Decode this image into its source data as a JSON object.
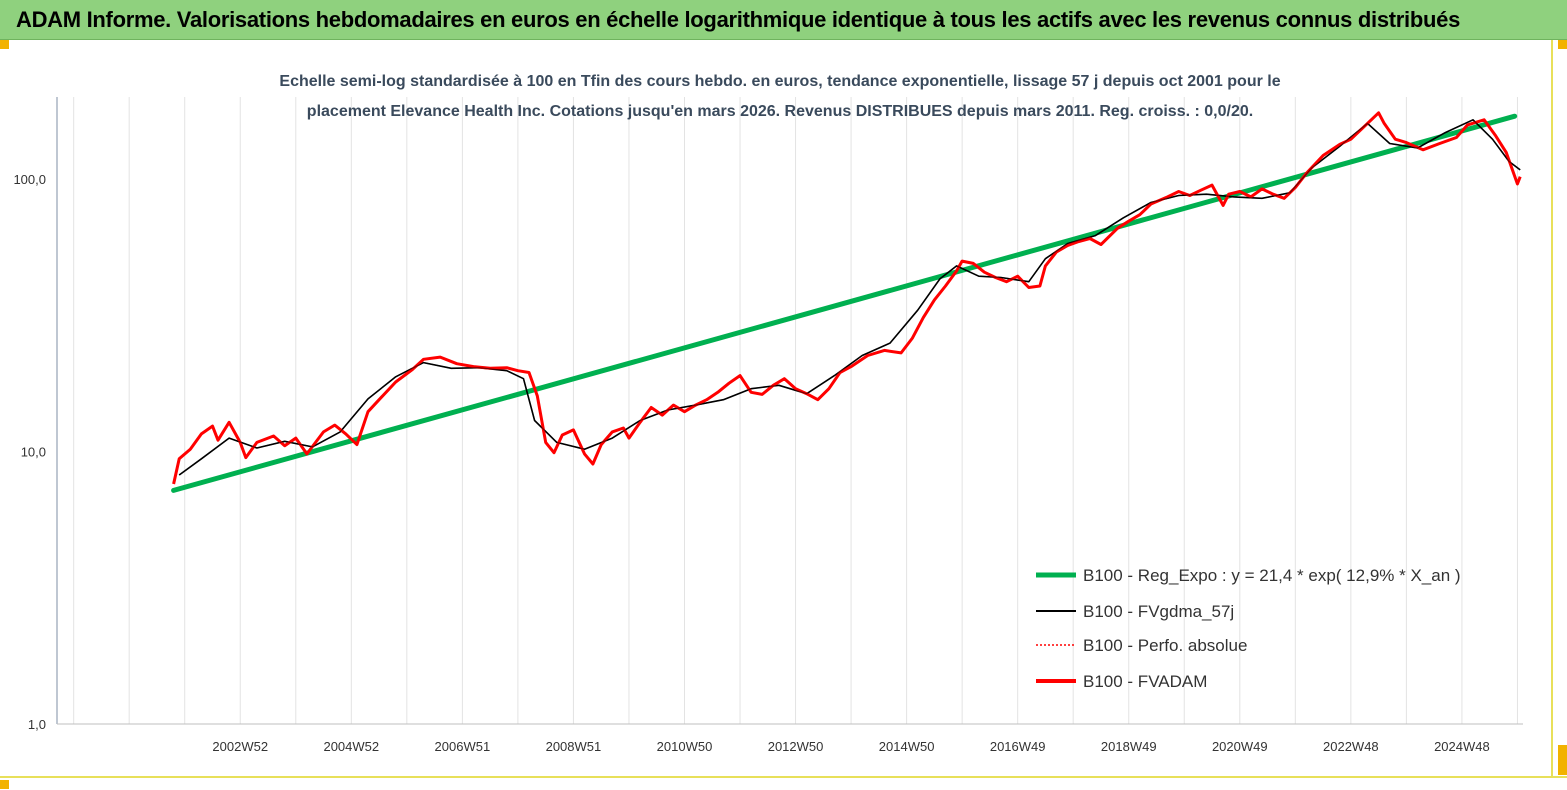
{
  "header": {
    "title": "ADAM Informe. Valorisations hebdomadaires en euros en échelle logarithmique identique à tous les actifs avec les revenus connus distribués"
  },
  "chart_data": {
    "type": "line",
    "subtitle_lines": [
      "Echelle semi-log standardisée à 100 en Tfin des cours hebdo. en euros, tendance exponentielle, lissage 57 j depuis oct 2001 pour le",
      "placement Elevance Health Inc. Cotations jusqu'en mars 2026. Revenus DISTRIBUES depuis mars 2011. Reg. croiss. : 0,0/20."
    ],
    "y_scale": "log",
    "ylim": [
      1,
      200
    ],
    "y_ticks": [
      {
        "value": 1,
        "label": "1,0"
      },
      {
        "value": 10,
        "label": "10,0"
      },
      {
        "value": 100,
        "label": "100,0"
      }
    ],
    "xlim": [
      1999.7,
      2026.1
    ],
    "x_ticks": [
      {
        "x": 2003.0,
        "label": "2002W52"
      },
      {
        "x": 2005.0,
        "label": "2004W52"
      },
      {
        "x": 2007.0,
        "label": "2006W51"
      },
      {
        "x": 2009.0,
        "label": "2008W51"
      },
      {
        "x": 2011.0,
        "label": "2010W50"
      },
      {
        "x": 2013.0,
        "label": "2012W50"
      },
      {
        "x": 2015.0,
        "label": "2014W50"
      },
      {
        "x": 2017.0,
        "label": "2016W49"
      },
      {
        "x": 2019.0,
        "label": "2018W49"
      },
      {
        "x": 2021.0,
        "label": "2020W49"
      },
      {
        "x": 2023.0,
        "label": "2022W48"
      },
      {
        "x": 2025.0,
        "label": "2024W48"
      }
    ],
    "gridlines": [
      2000.0,
      2001.0,
      2002.0,
      2003.0,
      2004.0,
      2005.0,
      2006.0,
      2007.0,
      2008.0,
      2009.0,
      2010.0,
      2011.0,
      2012.0,
      2013.0,
      2014.0,
      2015.0,
      2016.0,
      2017.0,
      2018.0,
      2019.0,
      2020.0,
      2021.0,
      2022.0,
      2023.0,
      2024.0,
      2025.0,
      2026.0
    ],
    "grid": true,
    "legend_position": "bottom-right",
    "series": [
      {
        "name": "B100 - Reg_Expo : y = 21,4 * exp( 12,9% *  X_an )",
        "color": "#00b050",
        "style": "solid-thick",
        "points": [
          [
            2001.8,
            7.2
          ],
          [
            2025.95,
            170
          ]
        ]
      },
      {
        "name": "B100 - FVgdma_57j",
        "color": "#000000",
        "style": "solid-thin",
        "points": [
          [
            2001.9,
            8.2
          ],
          [
            2002.3,
            9.4
          ],
          [
            2002.8,
            11.2
          ],
          [
            2003.3,
            10.3
          ],
          [
            2003.8,
            10.9
          ],
          [
            2004.3,
            10.4
          ],
          [
            2004.8,
            11.8
          ],
          [
            2005.3,
            15.6
          ],
          [
            2005.8,
            18.8
          ],
          [
            2006.3,
            21.2
          ],
          [
            2006.8,
            20.2
          ],
          [
            2007.3,
            20.3
          ],
          [
            2007.8,
            19.8
          ],
          [
            2008.1,
            18.5
          ],
          [
            2008.3,
            13.0
          ],
          [
            2008.7,
            10.8
          ],
          [
            2009.2,
            10.2
          ],
          [
            2009.7,
            11.2
          ],
          [
            2010.2,
            13.0
          ],
          [
            2010.7,
            14.2
          ],
          [
            2011.2,
            14.8
          ],
          [
            2011.7,
            15.5
          ],
          [
            2012.2,
            17.0
          ],
          [
            2012.7,
            17.5
          ],
          [
            2013.2,
            16.3
          ],
          [
            2013.7,
            19.0
          ],
          [
            2014.2,
            22.5
          ],
          [
            2014.7,
            25.0
          ],
          [
            2015.2,
            33.0
          ],
          [
            2015.6,
            43.0
          ],
          [
            2015.9,
            48.0
          ],
          [
            2016.3,
            44.0
          ],
          [
            2016.7,
            43.5
          ],
          [
            2017.2,
            42.0
          ],
          [
            2017.5,
            51.0
          ],
          [
            2017.9,
            58.0
          ],
          [
            2018.4,
            62.0
          ],
          [
            2018.9,
            72.0
          ],
          [
            2019.4,
            82.0
          ],
          [
            2019.9,
            87.0
          ],
          [
            2020.4,
            88.0
          ],
          [
            2020.9,
            86.0
          ],
          [
            2021.4,
            85.0
          ],
          [
            2021.9,
            89.0
          ],
          [
            2022.3,
            110.0
          ],
          [
            2022.8,
            132.0
          ],
          [
            2023.3,
            160.0
          ],
          [
            2023.7,
            135.0
          ],
          [
            2024.2,
            130.0
          ],
          [
            2024.7,
            148.0
          ],
          [
            2025.2,
            165.0
          ],
          [
            2025.55,
            140.0
          ],
          [
            2025.85,
            116.0
          ],
          [
            2026.05,
            108.0
          ]
        ]
      },
      {
        "name": "B100 - Perfo. absolue",
        "color": "#ff0000",
        "style": "dotted",
        "points": []
      },
      {
        "name": "B100 - FVADAM",
        "color": "#ff0000",
        "style": "solid-thick",
        "points": [
          [
            2001.8,
            7.6
          ],
          [
            2001.9,
            9.4
          ],
          [
            2002.1,
            10.2
          ],
          [
            2002.3,
            11.6
          ],
          [
            2002.5,
            12.4
          ],
          [
            2002.6,
            11.0
          ],
          [
            2002.8,
            12.8
          ],
          [
            2003.0,
            10.8
          ],
          [
            2003.1,
            9.5
          ],
          [
            2003.3,
            10.8
          ],
          [
            2003.6,
            11.4
          ],
          [
            2003.8,
            10.5
          ],
          [
            2004.0,
            11.2
          ],
          [
            2004.2,
            9.8
          ],
          [
            2004.5,
            11.8
          ],
          [
            2004.7,
            12.5
          ],
          [
            2004.9,
            11.6
          ],
          [
            2005.1,
            10.6
          ],
          [
            2005.3,
            14.0
          ],
          [
            2005.5,
            15.5
          ],
          [
            2005.8,
            18.0
          ],
          [
            2006.1,
            20.0
          ],
          [
            2006.3,
            21.8
          ],
          [
            2006.6,
            22.2
          ],
          [
            2006.9,
            21.0
          ],
          [
            2007.2,
            20.5
          ],
          [
            2007.5,
            20.2
          ],
          [
            2007.8,
            20.3
          ],
          [
            2008.0,
            19.8
          ],
          [
            2008.2,
            19.5
          ],
          [
            2008.35,
            16.0
          ],
          [
            2008.5,
            10.8
          ],
          [
            2008.65,
            9.9
          ],
          [
            2008.8,
            11.5
          ],
          [
            2009.0,
            12.0
          ],
          [
            2009.2,
            9.8
          ],
          [
            2009.35,
            9.0
          ],
          [
            2009.5,
            10.6
          ],
          [
            2009.7,
            11.8
          ],
          [
            2009.9,
            12.2
          ],
          [
            2010.0,
            11.2
          ],
          [
            2010.2,
            12.8
          ],
          [
            2010.4,
            14.5
          ],
          [
            2010.6,
            13.6
          ],
          [
            2010.8,
            14.8
          ],
          [
            2011.0,
            14.0
          ],
          [
            2011.2,
            14.8
          ],
          [
            2011.4,
            15.5
          ],
          [
            2011.6,
            16.5
          ],
          [
            2011.8,
            17.8
          ],
          [
            2012.0,
            19.0
          ],
          [
            2012.2,
            16.5
          ],
          [
            2012.4,
            16.2
          ],
          [
            2012.6,
            17.5
          ],
          [
            2012.8,
            18.5
          ],
          [
            2013.0,
            17.0
          ],
          [
            2013.2,
            16.3
          ],
          [
            2013.4,
            15.5
          ],
          [
            2013.6,
            17.0
          ],
          [
            2013.8,
            19.5
          ],
          [
            2014.0,
            20.5
          ],
          [
            2014.3,
            22.5
          ],
          [
            2014.6,
            23.5
          ],
          [
            2014.9,
            23.0
          ],
          [
            2015.1,
            26.0
          ],
          [
            2015.3,
            31.0
          ],
          [
            2015.5,
            36.0
          ],
          [
            2015.7,
            40.5
          ],
          [
            2015.9,
            46.0
          ],
          [
            2016.0,
            50.0
          ],
          [
            2016.2,
            49.0
          ],
          [
            2016.4,
            45.5
          ],
          [
            2016.6,
            43.5
          ],
          [
            2016.8,
            42.0
          ],
          [
            2017.0,
            44.0
          ],
          [
            2017.2,
            40.0
          ],
          [
            2017.4,
            40.5
          ],
          [
            2017.5,
            48.0
          ],
          [
            2017.7,
            54.0
          ],
          [
            2017.9,
            57.0
          ],
          [
            2018.1,
            59.0
          ],
          [
            2018.3,
            60.5
          ],
          [
            2018.5,
            57.5
          ],
          [
            2018.8,
            66.0
          ],
          [
            2019.0,
            70.0
          ],
          [
            2019.2,
            74.0
          ],
          [
            2019.4,
            81.0
          ],
          [
            2019.7,
            86.0
          ],
          [
            2019.9,
            90.0
          ],
          [
            2020.1,
            87.0
          ],
          [
            2020.3,
            91.0
          ],
          [
            2020.5,
            95.0
          ],
          [
            2020.7,
            80.0
          ],
          [
            2020.8,
            88.0
          ],
          [
            2021.0,
            90.0
          ],
          [
            2021.2,
            86.0
          ],
          [
            2021.4,
            92.0
          ],
          [
            2021.6,
            88.0
          ],
          [
            2021.8,
            85.0
          ],
          [
            2022.0,
            93.0
          ],
          [
            2022.2,
            105.0
          ],
          [
            2022.5,
            122.0
          ],
          [
            2022.8,
            134.0
          ],
          [
            2023.0,
            140.0
          ],
          [
            2023.3,
            160.0
          ],
          [
            2023.5,
            175.0
          ],
          [
            2023.6,
            160.0
          ],
          [
            2023.8,
            140.0
          ],
          [
            2024.0,
            136.0
          ],
          [
            2024.3,
            128.0
          ],
          [
            2024.6,
            135.0
          ],
          [
            2024.9,
            142.0
          ],
          [
            2025.1,
            158.0
          ],
          [
            2025.4,
            165.0
          ],
          [
            2025.6,
            145.0
          ],
          [
            2025.8,
            125.0
          ],
          [
            2026.0,
            96.0
          ],
          [
            2026.05,
            102.0
          ]
        ]
      }
    ]
  }
}
